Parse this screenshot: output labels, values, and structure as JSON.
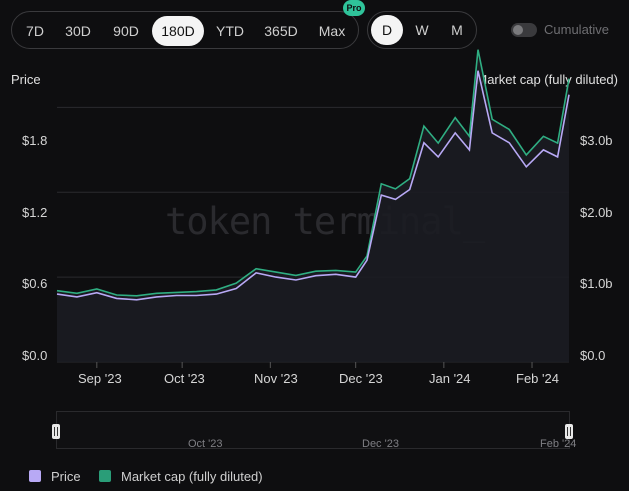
{
  "toolbar": {
    "ranges": [
      "7D",
      "30D",
      "90D",
      "180D",
      "YTD",
      "365D",
      "Max"
    ],
    "active_range": "180D",
    "pro_badge": "Pro",
    "granularity": [
      "D",
      "W",
      "M"
    ],
    "active_granularity": "D",
    "cumulative_label": "Cumulative",
    "cumulative_on": false
  },
  "chart": {
    "left_axis_title": "Price",
    "right_axis_title": "Market cap (fully diluted)",
    "watermark": "token terminal_",
    "left_ticks": [
      "$1.8",
      "$1.2",
      "$0.6",
      "$0.0"
    ],
    "right_ticks": [
      "$3.0b",
      "$2.0b",
      "$1.0b",
      "$0.0"
    ],
    "x_ticks": [
      "Sep '23",
      "Oct '23",
      "Nov '23",
      "Dec '23",
      "Jan '24",
      "Feb '24"
    ]
  },
  "navigator": {
    "labels": [
      "Oct '23",
      "Dec '23",
      "Feb '24"
    ]
  },
  "legend": [
    {
      "label": "Price",
      "color": "#b8a9f5"
    },
    {
      "label": "Market cap (fully diluted)",
      "color": "#2a9d78"
    }
  ],
  "colors": {
    "price": "#b8a9f5",
    "market_cap": "#2fae82",
    "background": "#0e0e10"
  },
  "chart_data": {
    "type": "line",
    "x_range": [
      "2023-08-18",
      "2024-02-14"
    ],
    "y_left_range": [
      0,
      2.1
    ],
    "y_right_range": [
      0,
      3.5
    ],
    "grid": true,
    "legend_position": "bottom-left",
    "series": [
      {
        "name": "Price",
        "axis": "left",
        "x": [
          "2023-08-18",
          "2023-08-25",
          "2023-09-01",
          "2023-09-08",
          "2023-09-15",
          "2023-09-22",
          "2023-09-29",
          "2023-10-06",
          "2023-10-13",
          "2023-10-20",
          "2023-10-27",
          "2023-11-03",
          "2023-11-10",
          "2023-11-17",
          "2023-11-24",
          "2023-12-01",
          "2023-12-05",
          "2023-12-10",
          "2023-12-15",
          "2023-12-20",
          "2023-12-25",
          "2023-12-30",
          "2024-01-05",
          "2024-01-10",
          "2024-01-13",
          "2024-01-18",
          "2024-01-24",
          "2024-01-30",
          "2024-02-05",
          "2024-02-10",
          "2024-02-14"
        ],
        "values": [
          0.48,
          0.46,
          0.49,
          0.45,
          0.44,
          0.46,
          0.47,
          0.47,
          0.48,
          0.52,
          0.63,
          0.6,
          0.58,
          0.61,
          0.62,
          0.6,
          0.72,
          1.18,
          1.15,
          1.22,
          1.55,
          1.45,
          1.62,
          1.5,
          2.06,
          1.62,
          1.55,
          1.38,
          1.5,
          1.45,
          1.89
        ]
      },
      {
        "name": "Market cap (fully diluted)",
        "axis": "right",
        "x": [
          "2023-08-18",
          "2023-08-25",
          "2023-09-01",
          "2023-09-08",
          "2023-09-15",
          "2023-09-22",
          "2023-09-29",
          "2023-10-06",
          "2023-10-13",
          "2023-10-20",
          "2023-10-27",
          "2023-11-03",
          "2023-11-10",
          "2023-11-17",
          "2023-11-24",
          "2023-12-01",
          "2023-12-05",
          "2023-12-10",
          "2023-12-15",
          "2023-12-20",
          "2023-12-25",
          "2023-12-30",
          "2024-01-05",
          "2024-01-10",
          "2024-01-13",
          "2024-01-18",
          "2024-01-24",
          "2024-01-30",
          "2024-02-05",
          "2024-02-10",
          "2024-02-14"
        ],
        "values": [
          0.84,
          0.81,
          0.86,
          0.79,
          0.78,
          0.81,
          0.82,
          0.83,
          0.85,
          0.93,
          1.1,
          1.06,
          1.02,
          1.07,
          1.08,
          1.06,
          1.25,
          2.1,
          2.04,
          2.16,
          2.78,
          2.58,
          2.88,
          2.66,
          3.68,
          2.86,
          2.74,
          2.44,
          2.66,
          2.58,
          3.34
        ]
      }
    ]
  }
}
